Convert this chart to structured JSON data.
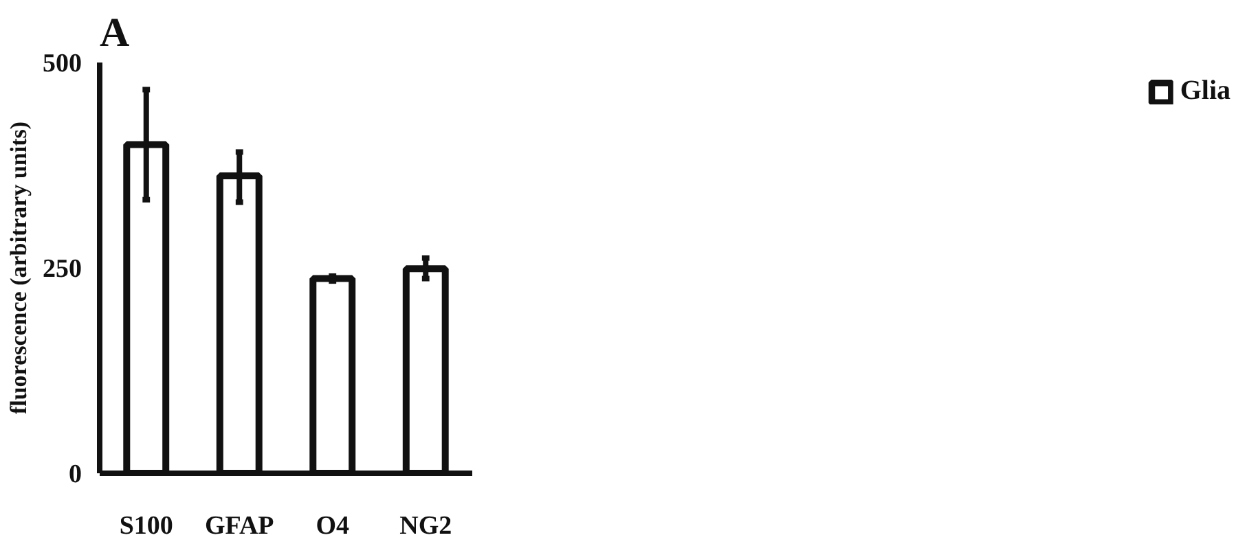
{
  "chart_data": {
    "type": "bar",
    "title": "A",
    "ylabel": "fluorescence (arbitrary units)",
    "categories": [
      "S100",
      "GFAP",
      "O4",
      "NG2"
    ],
    "series": [
      {
        "name": "Glia",
        "color": "#ffffff",
        "values": [
          400,
          362,
          237,
          249
        ],
        "errors": [
          [
            333,
            467
          ],
          [
            330,
            391
          ],
          [
            234,
            240
          ],
          [
            237,
            262
          ]
        ]
      }
    ],
    "ylim": [
      0,
      500
    ],
    "yticks": [
      0,
      250,
      500
    ],
    "grid": false,
    "legend": "right"
  }
}
